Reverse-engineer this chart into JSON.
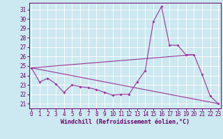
{
  "xlabel": "Windchill (Refroidissement éolien,°C)",
  "background_color": "#cce8f0",
  "grid_color": "#ffffff",
  "line_color": "#993399",
  "x_ticks": [
    0,
    1,
    2,
    3,
    4,
    5,
    6,
    7,
    8,
    9,
    10,
    11,
    12,
    13,
    14,
    15,
    16,
    17,
    18,
    19,
    20,
    21,
    22,
    23
  ],
  "y_ticks": [
    21,
    22,
    23,
    24,
    25,
    26,
    27,
    28,
    29,
    30,
    31
  ],
  "xlim": [
    -0.3,
    23.3
  ],
  "ylim": [
    20.5,
    31.7
  ],
  "curve_x": [
    0,
    1,
    2,
    3,
    4,
    5,
    6,
    7,
    8,
    9,
    10,
    11,
    12,
    13,
    14,
    15,
    16,
    17,
    18,
    19,
    20,
    21,
    22,
    23
  ],
  "curve_y": [
    24.8,
    23.3,
    23.7,
    23.1,
    22.2,
    23.0,
    22.8,
    22.7,
    22.5,
    22.2,
    21.9,
    22.0,
    22.0,
    23.3,
    24.5,
    29.7,
    31.3,
    27.2,
    27.2,
    26.2,
    26.2,
    24.1,
    21.8,
    21.0
  ],
  "line1_x": [
    0,
    23
  ],
  "line1_y": [
    24.8,
    21.0
  ],
  "line2_x": [
    0,
    20
  ],
  "line2_y": [
    24.8,
    26.2
  ],
  "tick_color": "#660066",
  "tick_fontsize": 5.5,
  "xlabel_fontsize": 6.0
}
